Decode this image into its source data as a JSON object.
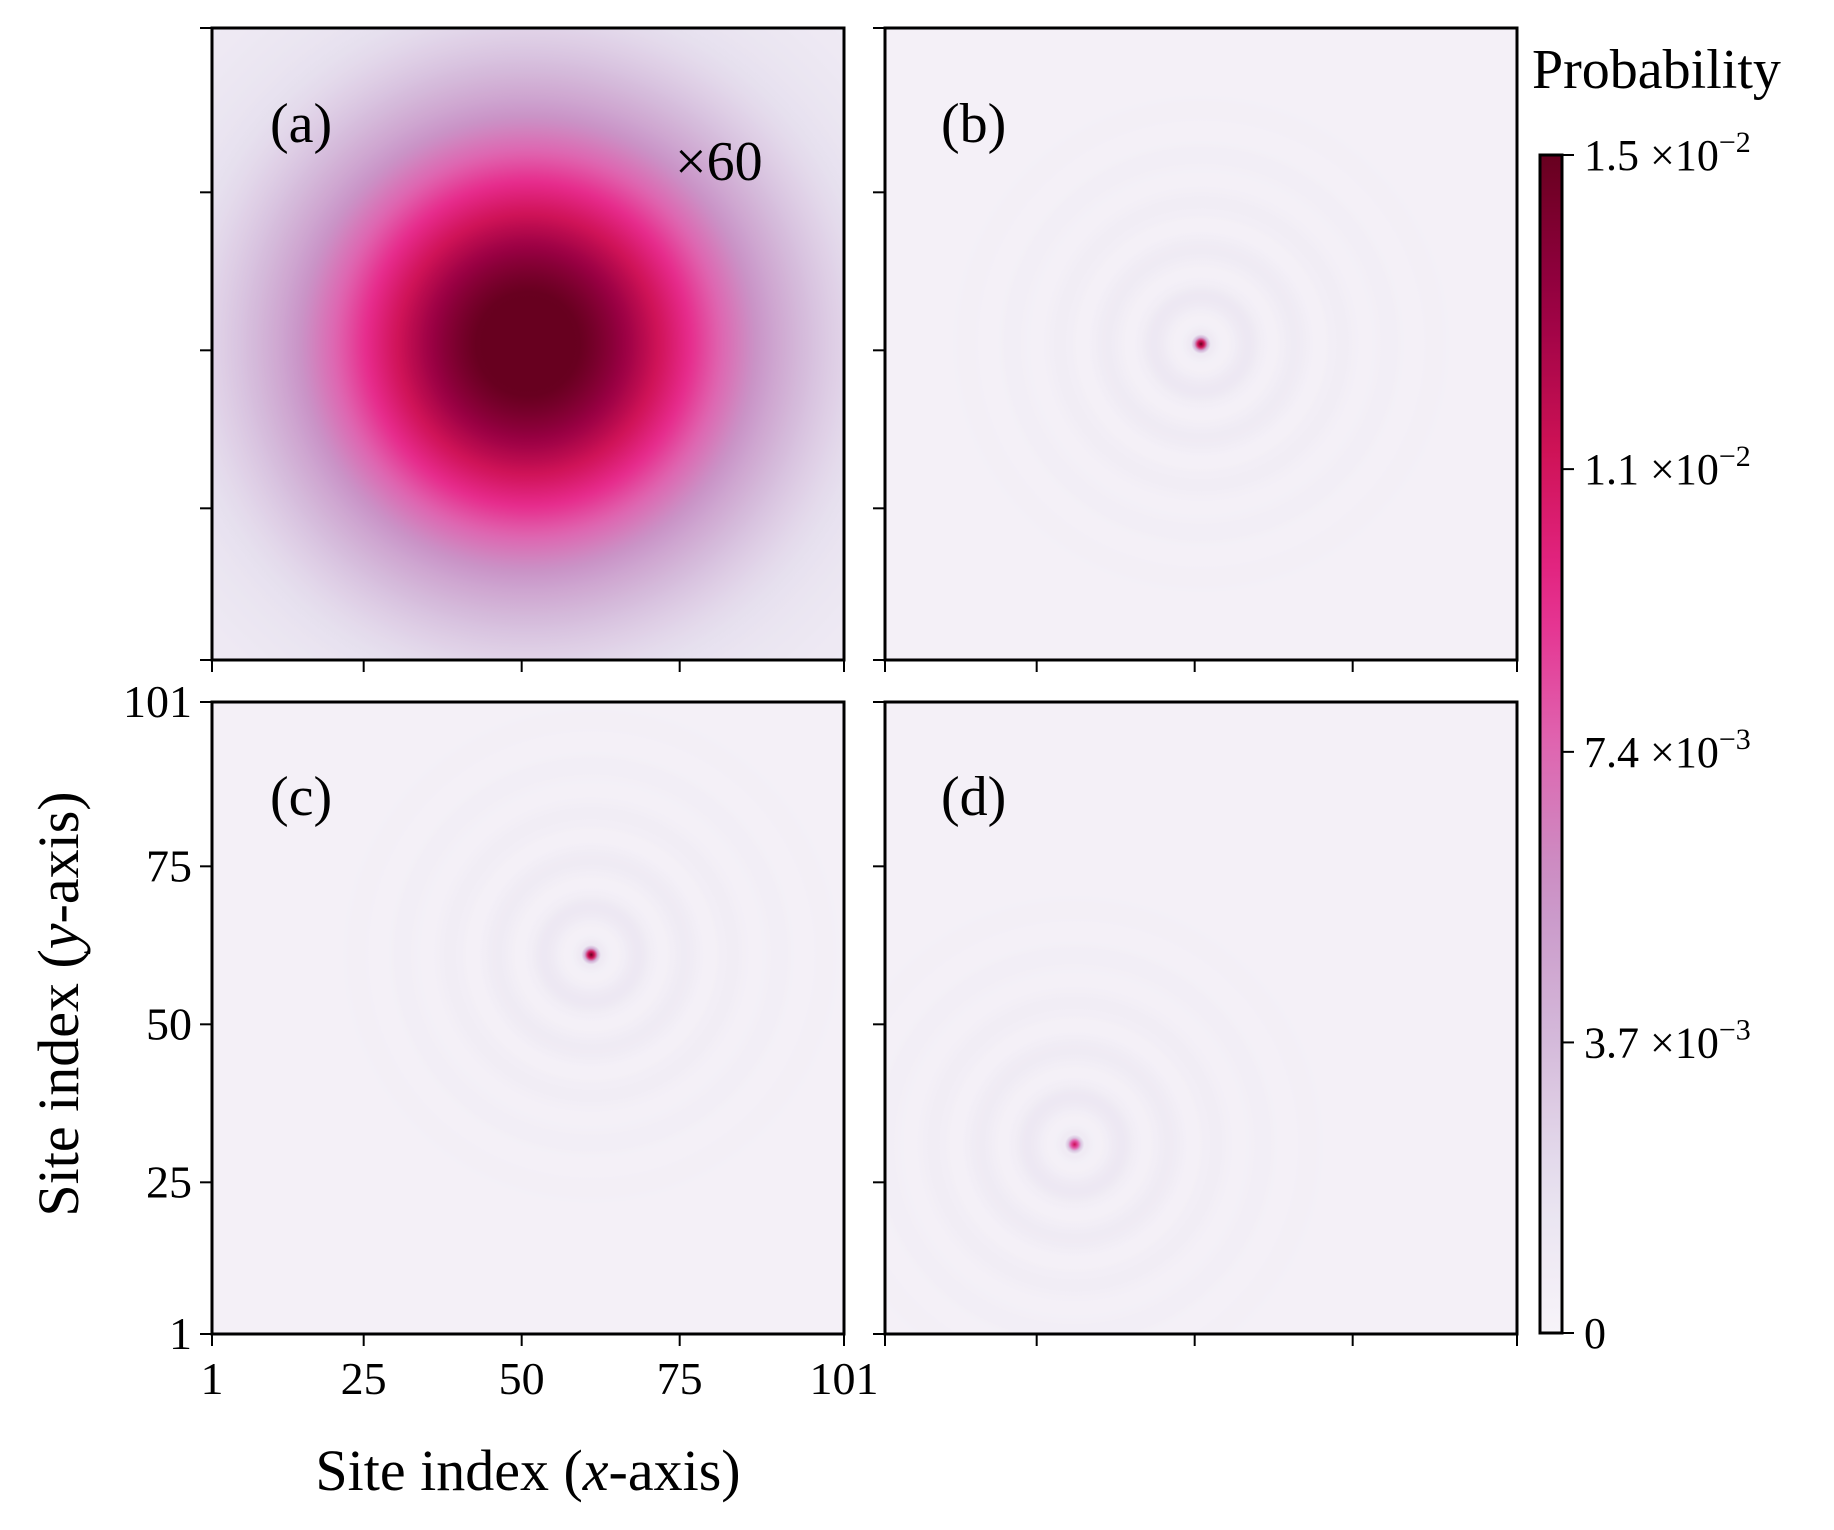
{
  "chart_data": {
    "type": "heatmap",
    "colormap": [
      "#f7f4f9",
      "#e7e1ef",
      "#d4b9da",
      "#c994c7",
      "#df65b0",
      "#e7298a",
      "#ce1256",
      "#980043",
      "#67001f"
    ],
    "color_range": [
      0,
      0.015
    ],
    "colorbar": {
      "title": "Probability",
      "ticks": [
        {
          "value": 0.015,
          "mantissa": "1.5",
          "exponent": "−2"
        },
        {
          "value": 0.011,
          "mantissa": "1.1",
          "exponent": "−2"
        },
        {
          "value": 0.0074,
          "mantissa": "7.4",
          "exponent": "−3"
        },
        {
          "value": 0.0037,
          "mantissa": "3.7",
          "exponent": "−3"
        },
        {
          "value": 0,
          "mantissa": "0",
          "exponent": ""
        }
      ],
      "times_symbol": "×10"
    },
    "xlabel": {
      "pre": "Site index (",
      "var": "x",
      "post": "-axis)"
    },
    "ylabel": {
      "pre": "Site index (",
      "var": "y",
      "post": "-axis)"
    },
    "xlim": [
      1,
      101
    ],
    "ylim": [
      1,
      101
    ],
    "x_ticks": [
      1,
      25,
      50,
      75,
      101
    ],
    "y_ticks": [
      1,
      25,
      50,
      75,
      101
    ],
    "panels": [
      {
        "id": "a",
        "label": "(a)",
        "annotation": "×60",
        "kind": "gaussian",
        "center": [
          51,
          51
        ],
        "sigma": 24,
        "peak": 0.015
      },
      {
        "id": "b",
        "label": "(b)",
        "annotation": "",
        "kind": "rings",
        "center": [
          51,
          51
        ],
        "peak": 0.015
      },
      {
        "id": "c",
        "label": "(c)",
        "annotation": "",
        "kind": "rings",
        "center": [
          61,
          61
        ],
        "peak": 0.015
      },
      {
        "id": "d",
        "label": "(d)",
        "annotation": "",
        "kind": "rings",
        "center": [
          31,
          31
        ],
        "peak": 0.011
      }
    ]
  }
}
